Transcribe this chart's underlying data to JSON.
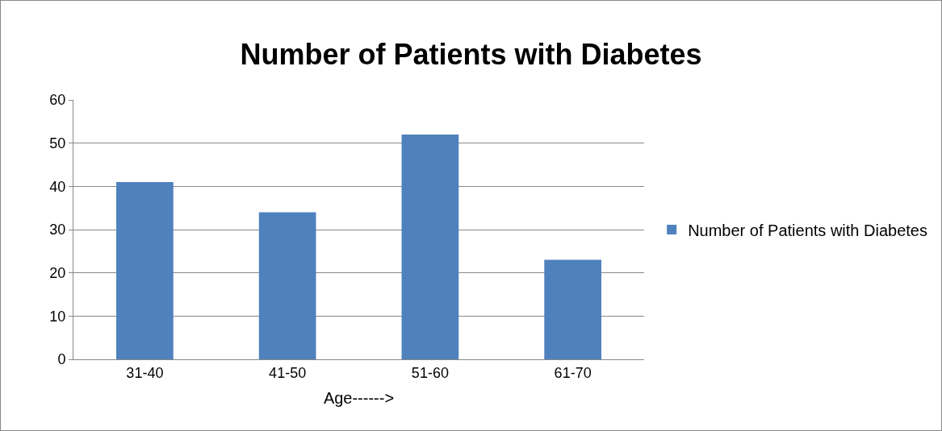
{
  "chart_data": {
    "type": "bar",
    "title": "Number of Patients with Diabetes",
    "xlabel": "Age------>",
    "categories": [
      "31-40",
      "41-50",
      "51-60",
      "61-70"
    ],
    "series": [
      {
        "name": "Number of Patients with Diabetes",
        "color": "#4f81bd",
        "values": [
          41,
          34,
          52,
          23
        ]
      }
    ],
    "ylim": [
      0,
      60
    ],
    "yticks": [
      0,
      10,
      20,
      30,
      40,
      50,
      60
    ],
    "grid": "y",
    "legend": "right"
  }
}
